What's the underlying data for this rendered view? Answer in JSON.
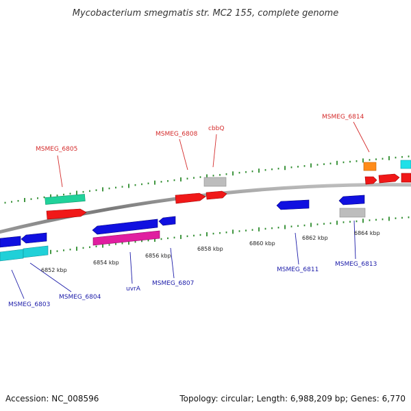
{
  "title": "Mycobacterium smegmatis str. MC2 155, complete genome",
  "footer": {
    "accession": "Accession: NC_008596",
    "summary": "Topology: circular; Length: 6,988,209 bp; Genes: 6,770"
  },
  "colors": {
    "backbone": "#8a8a8a",
    "tick": "#2a8a2a",
    "label_forward": "#d42a2a",
    "label_reverse": "#1a1aa8"
  },
  "ruler_labels": [
    "6852 kbp",
    "6854 kbp",
    "6856 kbp",
    "6858 kbp",
    "6860 kbp",
    "6862 kbp",
    "6864 kbp"
  ],
  "gene_labels": {
    "forward": [
      "MSMEG_6805",
      "MSMEG_6808",
      "cbbQ",
      "MSMEG_6814"
    ],
    "reverse": [
      "MSMEG_6803",
      "MSMEG_6804",
      "uvrA",
      "MSMEG_6807",
      "MSMEG_6811",
      "MSMEG_6813"
    ]
  }
}
